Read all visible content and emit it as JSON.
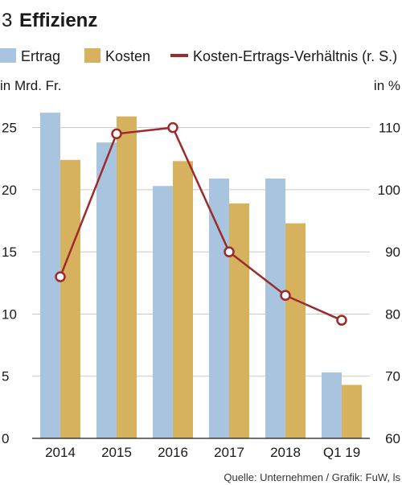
{
  "header": {
    "number": "3",
    "title": "Effizienz"
  },
  "legend": [
    {
      "label": "Ertrag",
      "color": "#a9c4de",
      "kind": "box"
    },
    {
      "label": "Kosten",
      "color": "#d6b25e",
      "kind": "box"
    },
    {
      "label": "Kosten-Ertrags-Verhältnis (r. S.)",
      "color": "#9e2a2b",
      "kind": "line"
    }
  ],
  "source": "Quelle: Unternehmen / Grafik: FuW, ls",
  "chart_data": {
    "type": "bar",
    "categories": [
      "2014",
      "2015",
      "2016",
      "2017",
      "2018",
      "Q1 19"
    ],
    "series": [
      {
        "name": "Ertrag",
        "axis": "left",
        "values": [
          26.2,
          23.8,
          20.3,
          20.9,
          20.9,
          5.3
        ],
        "color": "#a9c4de"
      },
      {
        "name": "Kosten",
        "axis": "left",
        "values": [
          22.4,
          25.9,
          22.3,
          18.9,
          17.3,
          4.3
        ],
        "color": "#d6b25e"
      },
      {
        "name": "Kosten-Ertrags-Verhältnis (r. S.)",
        "axis": "right",
        "type": "line",
        "values": [
          86,
          109,
          110,
          90,
          83,
          79
        ],
        "color": "#9e2a2b"
      }
    ],
    "y_left": {
      "label": "in Mrd. Fr.",
      "ticks": [
        0,
        5,
        10,
        15,
        20,
        25
      ],
      "range": [
        0,
        27.5
      ]
    },
    "y_right": {
      "label": "in %",
      "ticks": [
        60,
        70,
        80,
        90,
        100,
        110
      ],
      "range": [
        60,
        115
      ]
    },
    "grid": "horizontal",
    "legend_position": "top"
  }
}
